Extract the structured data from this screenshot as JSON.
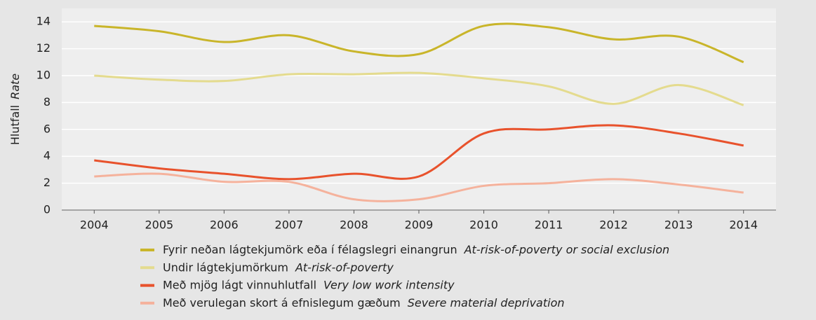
{
  "chart_data": {
    "type": "line",
    "y_label": "Hlutfall",
    "y_label_en": "Rate",
    "categories": [
      "2004",
      "2005",
      "2006",
      "2007",
      "2008",
      "2009",
      "2010",
      "2011",
      "2012",
      "2013",
      "2014"
    ],
    "series": [
      {
        "name": "Fyrir neðan lágtekjumörk eða í félagslegri einangrun",
        "name_en": "At-risk-of-poverty or social exclusion",
        "color": "#c9b52a",
        "values": [
          13.7,
          13.3,
          12.5,
          13.0,
          11.8,
          11.6,
          13.7,
          13.6,
          12.7,
          12.9,
          11.0
        ]
      },
      {
        "name": "Undir lágtekjumörkum",
        "name_en": "At-risk-of-poverty",
        "color": "#e4db8e",
        "values": [
          10.0,
          9.7,
          9.6,
          10.1,
          10.1,
          10.2,
          9.8,
          9.2,
          7.9,
          9.3,
          7.8
        ]
      },
      {
        "name": "Með mjög lágt vinnuhlutfall",
        "name_en": "Very low work intensity",
        "color": "#e8522c",
        "values": [
          3.7,
          3.1,
          2.7,
          2.3,
          2.7,
          2.5,
          5.7,
          6.0,
          6.3,
          5.7,
          4.8
        ]
      },
      {
        "name": "Með verulegan skort á efnislegum gæðum",
        "name_en": "Severe material deprivation",
        "color": "#f5b29c",
        "values": [
          2.5,
          2.7,
          2.1,
          2.1,
          0.8,
          0.8,
          1.8,
          2.0,
          2.3,
          1.9,
          1.3
        ]
      }
    ],
    "ylim": [
      0,
      15
    ],
    "yticks": [
      0,
      2,
      4,
      6,
      8,
      10,
      12,
      14
    ],
    "grid": true
  }
}
